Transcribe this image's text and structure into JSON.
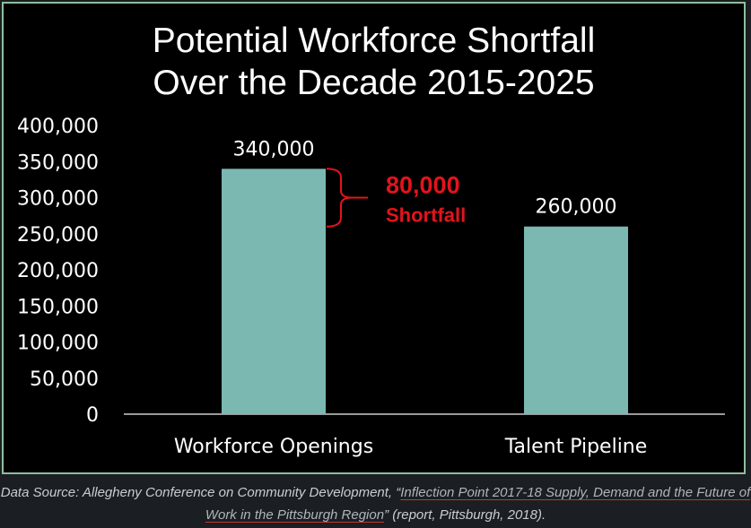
{
  "chart_data": {
    "type": "bar",
    "title_lines": [
      "Potential Workforce Shortfall",
      "Over the Decade 2015-2025"
    ],
    "categories": [
      "Workforce Openings",
      "Talent Pipeline"
    ],
    "values": [
      340000,
      260000
    ],
    "data_labels": [
      "340,000",
      "260,000"
    ],
    "y_ticks": [
      "0",
      "50,000",
      "100,000",
      "150,000",
      "200,000",
      "250,000",
      "300,000",
      "350,000",
      "400,000"
    ],
    "ylim": [
      0,
      400000
    ],
    "bar_color": "#7ab8b1",
    "annotation": {
      "value_text": "80,000",
      "label_text": "Shortfall",
      "from": 260000,
      "to": 340000,
      "color": "#e3141b"
    },
    "legend": "none",
    "grid": false
  },
  "caption": {
    "prefix": "Data Source: Allegheny Conference on Community Development, “",
    "link_text": "Inflection Point 2017-18 Supply, Demand and the Future of Work in the Pittsburgh Region",
    "suffix": "” (report, Pittsburgh, 2018)."
  }
}
